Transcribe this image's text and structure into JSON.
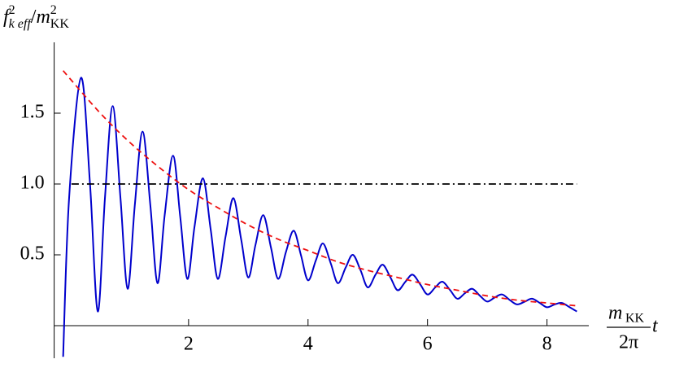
{
  "chart_data": {
    "type": "line",
    "ylabel": [
      "f",
      "2",
      "k eff",
      "/",
      "m",
      "2",
      "KK"
    ],
    "xlabel": [
      "m",
      "KK",
      "2π",
      "t"
    ],
    "xlim": [
      -0.25,
      8.7
    ],
    "ylim": [
      -0.23,
      2.0
    ],
    "xticks": [
      2,
      4,
      6,
      8
    ],
    "yticks": [
      0.5,
      {
        "value": 1.0,
        "label": "1.0"
      },
      1.5
    ],
    "grid": false,
    "series": [
      {
        "color": "#0000cc",
        "dash": "solid",
        "smooth": true,
        "x": [
          -0.1,
          0.0,
          0.2,
          0.35,
          0.48,
          0.6,
          0.73,
          0.86,
          0.98,
          1.1,
          1.23,
          1.36,
          1.48,
          1.6,
          1.74,
          1.86,
          1.98,
          2.1,
          2.24,
          2.37,
          2.49,
          2.62,
          2.75,
          2.88,
          3.0,
          3.12,
          3.25,
          3.38,
          3.5,
          3.63,
          3.76,
          3.88,
          4.0,
          4.13,
          4.25,
          4.38,
          4.5,
          4.63,
          4.75,
          4.88,
          5.0,
          5.13,
          5.25,
          5.38,
          5.5,
          5.63,
          5.75,
          5.88,
          6.0,
          6.13,
          6.25,
          6.38,
          6.5,
          6.63,
          6.75,
          6.88,
          7.0,
          7.13,
          7.25,
          7.38,
          7.5,
          7.63,
          7.75,
          7.88,
          8.0,
          8.13,
          8.25,
          8.38,
          8.5
        ],
        "values": [
          -0.22,
          0.9,
          1.75,
          1.0,
          0.1,
          0.9,
          1.55,
          0.9,
          0.26,
          0.85,
          1.37,
          0.85,
          0.3,
          0.78,
          1.2,
          0.77,
          0.33,
          0.7,
          1.04,
          0.68,
          0.33,
          0.63,
          0.9,
          0.61,
          0.34,
          0.57,
          0.78,
          0.55,
          0.33,
          0.52,
          0.67,
          0.5,
          0.32,
          0.46,
          0.58,
          0.44,
          0.3,
          0.41,
          0.5,
          0.39,
          0.27,
          0.36,
          0.43,
          0.34,
          0.25,
          0.31,
          0.36,
          0.29,
          0.22,
          0.27,
          0.31,
          0.25,
          0.19,
          0.23,
          0.26,
          0.21,
          0.17,
          0.2,
          0.22,
          0.18,
          0.15,
          0.17,
          0.19,
          0.16,
          0.13,
          0.15,
          0.16,
          0.13,
          0.1
        ]
      },
      {
        "color": "#ee1111",
        "dash": "dashed",
        "smooth": true,
        "x": [
          -0.1,
          0.5,
          1,
          1.5,
          2,
          2.5,
          3,
          3.5,
          4,
          4.5,
          5,
          5.5,
          6,
          6.5,
          7,
          7.5,
          8,
          8.5
        ],
        "values": [
          1.8,
          1.51,
          1.3,
          1.12,
          0.96,
          0.83,
          0.71,
          0.61,
          0.53,
          0.45,
          0.39,
          0.34,
          0.29,
          0.25,
          0.21,
          0.18,
          0.16,
          0.14
        ]
      },
      {
        "color": "#000000",
        "dash": "dashdot",
        "smooth": false,
        "x": [
          0.04,
          8.5
        ],
        "values": [
          1.0,
          1.0
        ]
      }
    ]
  }
}
